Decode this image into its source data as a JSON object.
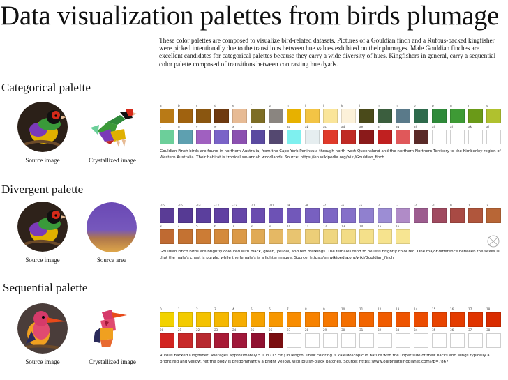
{
  "title": "Data visualization palettes from birds plumage",
  "intro": "These color palettes are composed to visualize bird-related datasets. Pictures of a Gouldian finch and a Rufous-backed kingfisher were picked intentionally due to the transitions between hue values exhibited on their plumages. Male Gouldian finches are excellent candidates for categorical palettes because they carry a wide diversity of hues. Kingfishers in general, carry a sequential color palette composed of transitions between contrasting hue dyads.",
  "sections": {
    "categorical": {
      "title": "Categorical palette",
      "label_left": "Source image",
      "label_right": "Crystallized image",
      "caption": "Gouldian Finch birds are found in northern Australia, from the Cape York Peninsula through north-west Queensland and the northern Northern Territory to the Kimberley region of Western Australia. Their habitat is tropical savannah woodlands. Source: https://en.wikipedia.org/wiki/Gouldian_finch",
      "row1": [
        {
          "code": "a",
          "color": "#b97a16"
        },
        {
          "code": "b",
          "color": "#a0620f"
        },
        {
          "code": "c",
          "color": "#8a5610"
        },
        {
          "code": "d",
          "color": "#6e3a10"
        },
        {
          "code": "e",
          "color": "#e7bb95"
        },
        {
          "code": "f",
          "color": "#7d6d25"
        },
        {
          "code": "g",
          "color": "#8a8580"
        },
        {
          "code": "h",
          "color": "#e7b100"
        },
        {
          "code": "i",
          "color": "#f3c445"
        },
        {
          "code": "j",
          "color": "#fae59a"
        },
        {
          "code": "k",
          "color": "#fcf1d9"
        },
        {
          "code": "l",
          "color": "#4a4a1a"
        },
        {
          "code": "m",
          "color": "#3b5e3e"
        },
        {
          "code": "n",
          "color": "#5a7a8a"
        },
        {
          "code": "o",
          "color": "#2e6a4c"
        },
        {
          "code": "p",
          "color": "#2f8a3a"
        },
        {
          "code": "q",
          "color": "#3e9a35"
        },
        {
          "code": "r",
          "color": "#6a9a18"
        },
        {
          "code": "s",
          "color": "#b0c12e"
        }
      ],
      "row2": [
        {
          "code": "t",
          "color": "#6ccf9a"
        },
        {
          "code": "u",
          "color": "#5ea0b0"
        },
        {
          "code": "v",
          "color": "#a060c0"
        },
        {
          "code": "w",
          "color": "#7a63c8"
        },
        {
          "code": "x",
          "color": "#8b50b0"
        },
        {
          "code": "y",
          "color": "#5a4aa0"
        },
        {
          "code": "z",
          "color": "#544870"
        },
        {
          "code": "aa",
          "color": "#7ef0ef"
        },
        {
          "code": "ab",
          "color": "#e6eef0"
        },
        {
          "code": "ac",
          "color": "#e03a2a"
        },
        {
          "code": "ad",
          "color": "#c02a24"
        },
        {
          "code": "ae",
          "color": "#8a1a1a"
        },
        {
          "code": "af",
          "color": "#c02020"
        },
        {
          "code": "ag",
          "color": "#e0585a"
        },
        {
          "code": "ah",
          "color": "#5a2a28"
        },
        {
          "code": "ai",
          "color": ""
        },
        {
          "code": "aj",
          "color": ""
        },
        {
          "code": "ak",
          "color": ""
        },
        {
          "code": "al",
          "color": ""
        }
      ]
    },
    "divergent": {
      "title": "Divergent palette",
      "label_left": "Source image",
      "label_right": "Source area",
      "caption": "Gouldian Finch birds are brightly coloured with black, green, yellow, and red markings. The females tend to be less brightly coloured. One major difference between the sexes is that the male's chest is purple, while the female's is a lighter mauve. Source: https://en.wikipedia.org/wiki/Gouldian_finch",
      "row1": [
        {
          "code": "-16",
          "color": "#5a3c96"
        },
        {
          "code": "-15",
          "color": "#563a94"
        },
        {
          "code": "-14",
          "color": "#5b3f9d"
        },
        {
          "code": "-13",
          "color": "#6040a2"
        },
        {
          "code": "-12",
          "color": "#6546a8"
        },
        {
          "code": "-11",
          "color": "#6a4caf"
        },
        {
          "code": "-10",
          "color": "#6d52b5"
        },
        {
          "code": "-9",
          "color": "#7258ba"
        },
        {
          "code": "-8",
          "color": "#7860c0"
        },
        {
          "code": "-7",
          "color": "#7d67c4"
        },
        {
          "code": "-6",
          "color": "#8570c9"
        },
        {
          "code": "-5",
          "color": "#9080cf"
        },
        {
          "code": "-4",
          "color": "#9c8dd4"
        },
        {
          "code": "-3",
          "color": "#b08bc7"
        },
        {
          "code": "-2",
          "color": "#9c5c8e"
        },
        {
          "code": "-1",
          "color": "#a04a60"
        },
        {
          "code": "0",
          "color": "#a84a44"
        },
        {
          "code": "1",
          "color": "#b0563c"
        },
        {
          "code": "2",
          "color": "#b86636"
        }
      ],
      "row2": [
        {
          "code": "3",
          "color": "#bf6a32"
        },
        {
          "code": "4",
          "color": "#c47232"
        },
        {
          "code": "5",
          "color": "#cc7c35"
        },
        {
          "code": "6",
          "color": "#d48a3c"
        },
        {
          "code": "7",
          "color": "#db9a48"
        },
        {
          "code": "8",
          "color": "#e0aa55"
        },
        {
          "code": "9",
          "color": "#e5b864"
        },
        {
          "code": "10",
          "color": "#e8c470"
        },
        {
          "code": "11",
          "color": "#ecce78"
        },
        {
          "code": "12",
          "color": "#efd680"
        },
        {
          "code": "13",
          "color": "#f2dc86"
        },
        {
          "code": "14",
          "color": "#f4e08a"
        },
        {
          "code": "15",
          "color": "#f6e38e"
        },
        {
          "code": "16",
          "color": "#f7e592"
        }
      ]
    },
    "sequential": {
      "title": "Sequential palette",
      "label_left": "Source image",
      "label_right": "Crystallized image",
      "caption": "Rufous backed Kingfisher. Averages approximately 5.1 in (13 cm) in length. Their coloring is kaleidoscopic in nature with the upper side of their backs and wings typically a bright red and yellow. Yet the body is predominantly a bright yellow, with bluish-black patches. Source: https://www.ourbreathingplanet.com/?p=7867",
      "row1": [
        {
          "code": "0",
          "color": "#f2d200"
        },
        {
          "code": "1",
          "color": "#f3cb00"
        },
        {
          "code": "2",
          "color": "#f4c200"
        },
        {
          "code": "3",
          "color": "#f5b800"
        },
        {
          "code": "4",
          "color": "#f6ad00"
        },
        {
          "code": "5",
          "color": "#f6a200"
        },
        {
          "code": "6",
          "color": "#f79700"
        },
        {
          "code": "7",
          "color": "#f88c00"
        },
        {
          "code": "8",
          "color": "#f78200"
        },
        {
          "code": "9",
          "color": "#f67800"
        },
        {
          "code": "10",
          "color": "#f46f00"
        },
        {
          "code": "11",
          "color": "#f26500"
        },
        {
          "code": "12",
          "color": "#f05c00"
        },
        {
          "code": "13",
          "color": "#ee5400"
        },
        {
          "code": "14",
          "color": "#eb4c00"
        },
        {
          "code": "15",
          "color": "#e84400"
        },
        {
          "code": "16",
          "color": "#e43c00"
        },
        {
          "code": "17",
          "color": "#e03400"
        },
        {
          "code": "18",
          "color": "#d92c00"
        }
      ],
      "row2": [
        {
          "code": "20",
          "color": "#d22420"
        },
        {
          "code": "21",
          "color": "#c82a2a"
        },
        {
          "code": "22",
          "color": "#b82a30"
        },
        {
          "code": "23",
          "color": "#a81a36"
        },
        {
          "code": "24",
          "color": "#a0183a"
        },
        {
          "code": "25",
          "color": "#901030"
        },
        {
          "code": "26",
          "color": "#7a0e10"
        },
        {
          "code": "27",
          "color": ""
        },
        {
          "code": "28",
          "color": ""
        },
        {
          "code": "29",
          "color": ""
        },
        {
          "code": "30",
          "color": ""
        },
        {
          "code": "31",
          "color": ""
        },
        {
          "code": "32",
          "color": ""
        },
        {
          "code": "33",
          "color": ""
        },
        {
          "code": "34",
          "color": ""
        },
        {
          "code": "35",
          "color": ""
        },
        {
          "code": "36",
          "color": ""
        },
        {
          "code": "37",
          "color": ""
        },
        {
          "code": "38",
          "color": ""
        }
      ]
    }
  }
}
